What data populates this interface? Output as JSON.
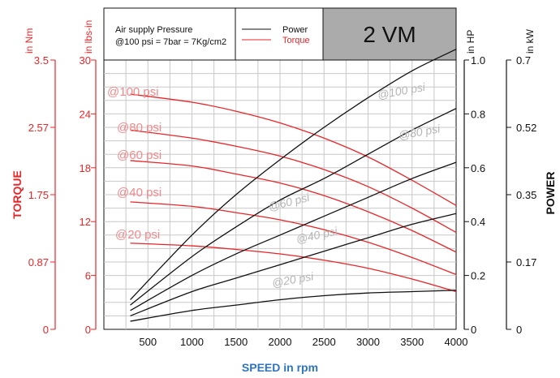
{
  "chart_data": {
    "type": "line",
    "title": "2 VM",
    "xlabel": "SPEED in rpm",
    "x_ticks": [
      500,
      1000,
      1500,
      2000,
      2500,
      3000,
      3500,
      4000
    ],
    "xlim": [
      0,
      4000
    ],
    "legend": {
      "note_line1": "Air supply Pressure",
      "note_line2": "@100 psi = 7bar = 7Kg/cm2",
      "power_label": "Power",
      "torque_label": "Torque",
      "power_color": "#111111",
      "torque_color": "#e8262a"
    },
    "axes": {
      "torque_nm": {
        "unit": "in Nm",
        "title": "TORQUE",
        "ticks": [
          "0",
          "0.87",
          "1.75",
          "2.57",
          "3.5"
        ],
        "range": [
          0,
          3.5
        ]
      },
      "torque_lbsin": {
        "unit": "in lbs-in",
        "ticks": [
          "0",
          "6",
          "12",
          "18",
          "24",
          "30"
        ],
        "range": [
          0,
          30
        ]
      },
      "power_hp": {
        "unit": "in HP",
        "ticks": [
          "0",
          "0.2",
          "0.4",
          "0.6",
          "0.8",
          "1.0"
        ],
        "range": [
          0,
          1.0
        ]
      },
      "power_kw": {
        "unit": "in kW",
        "title": "POWER",
        "ticks": [
          "0",
          "0.17",
          "0.35",
          "0.52",
          "0.7"
        ],
        "range": [
          0,
          0.7
        ]
      }
    },
    "torque_series": [
      {
        "name": "@100 psi",
        "x": [
          300,
          1000,
          1500,
          2000,
          2500,
          3000,
          3500,
          4000
        ],
        "y": [
          26.2,
          25.3,
          24.3,
          23.0,
          21.3,
          19.2,
          16.6,
          13.8
        ]
      },
      {
        "name": "@80 psi",
        "x": [
          300,
          1000,
          1500,
          2000,
          2500,
          3000,
          3500,
          4000
        ],
        "y": [
          22.2,
          21.3,
          20.4,
          19.3,
          17.8,
          15.9,
          13.5,
          10.8
        ]
      },
      {
        "name": "@60 psi",
        "x": [
          300,
          1000,
          1500,
          2000,
          2500,
          3000,
          3500,
          4000
        ],
        "y": [
          18.8,
          18.2,
          17.3,
          16.3,
          14.9,
          13.1,
          11.0,
          8.6
        ]
      },
      {
        "name": "@40 psi",
        "x": [
          300,
          1000,
          1500,
          2000,
          2500,
          3000,
          3500,
          4000
        ],
        "y": [
          14.2,
          13.7,
          13.0,
          12.2,
          11.1,
          9.7,
          8.0,
          6.1
        ]
      },
      {
        "name": "@20 psi",
        "x": [
          300,
          1000,
          1500,
          2000,
          2500,
          3000,
          3500,
          4000
        ],
        "y": [
          9.6,
          9.3,
          8.9,
          8.4,
          7.7,
          6.8,
          5.6,
          4.2
        ]
      }
    ],
    "power_series": [
      {
        "name": "@100 psi",
        "x": [
          300,
          1000,
          1500,
          2000,
          2500,
          3000,
          3500,
          4000
        ],
        "y": [
          0.11,
          0.35,
          0.5,
          0.63,
          0.75,
          0.86,
          0.96,
          1.04
        ]
      },
      {
        "name": "@80 psi",
        "x": [
          300,
          1000,
          1500,
          2000,
          2500,
          3000,
          3500,
          4000
        ],
        "y": [
          0.09,
          0.27,
          0.38,
          0.48,
          0.56,
          0.65,
          0.74,
          0.82
        ]
      },
      {
        "name": "@60 psi",
        "x": [
          300,
          1000,
          1500,
          2000,
          2500,
          3000,
          3500,
          4000
        ],
        "y": [
          0.07,
          0.2,
          0.28,
          0.35,
          0.42,
          0.49,
          0.56,
          0.62
        ]
      },
      {
        "name": "@40 psi",
        "x": [
          300,
          1000,
          1500,
          2000,
          2500,
          3000,
          3500,
          4000
        ],
        "y": [
          0.05,
          0.14,
          0.19,
          0.24,
          0.29,
          0.34,
          0.39,
          0.43
        ]
      },
      {
        "name": "@20 psi",
        "x": [
          300,
          1000,
          1500,
          2000,
          2500,
          3000,
          3500,
          4000
        ],
        "y": [
          0.03,
          0.07,
          0.09,
          0.11,
          0.125,
          0.135,
          0.14,
          0.145
        ]
      }
    ],
    "grid": true
  }
}
